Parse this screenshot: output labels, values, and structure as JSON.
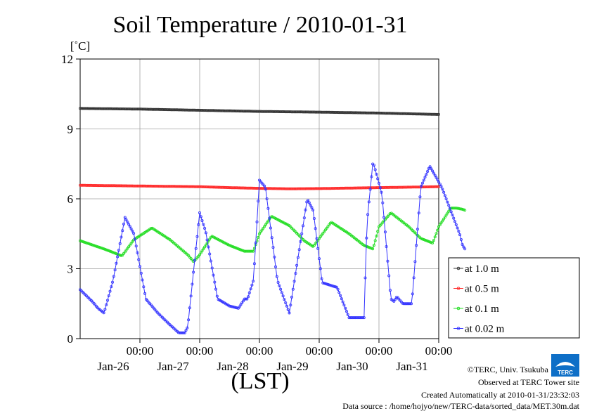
{
  "title": "Soil Temperature / 2010-01-31",
  "unit_label": "[˚C]",
  "xlabel": "(LST)",
  "credits": {
    "copyright": "©TERC, Univ. Tsukuba",
    "observed": "Observed at TERC Tower site",
    "created": "Created Automatically at 2010-01-31/23:32:03",
    "source": "Data source : /home/hojyo/new/TERC-data/sorted_data/MET.30m.dat"
  },
  "logo_text": "TERC",
  "chart_data": {
    "type": "line",
    "ylim": [
      0,
      12
    ],
    "yticks": [
      0,
      3,
      6,
      9,
      12
    ],
    "xlim": [
      -1.0,
      5.0
    ],
    "x_unit": "days after 2010-01-26 00:00 LST",
    "xticks": [
      {
        "x": 0,
        "time": "00:00",
        "date": "Jan-26"
      },
      {
        "x": 1,
        "time": "00:00",
        "date": "Jan-27"
      },
      {
        "x": 2,
        "time": "00:00",
        "date": "Jan-28"
      },
      {
        "x": 3,
        "time": "00:00",
        "date": "Jan-29"
      },
      {
        "x": 4,
        "time": "00:00",
        "date": "Jan-30"
      },
      {
        "x": 5,
        "time": "00:00",
        "date": "Jan-31"
      }
    ],
    "grid": true,
    "legend_position": "right",
    "series": [
      {
        "name": "at 1.0 m",
        "color": "#333333",
        "x": [
          -1.0,
          0.0,
          1.0,
          2.0,
          3.0,
          4.0,
          5.0
        ],
        "values": [
          9.88,
          9.85,
          9.8,
          9.75,
          9.72,
          9.68,
          9.62
        ]
      },
      {
        "name": "at 0.5 m",
        "color": "#ff2a2a",
        "x": [
          -1.0,
          0.0,
          1.0,
          1.5,
          2.0,
          2.5,
          3.0,
          4.0,
          5.0
        ],
        "values": [
          6.58,
          6.55,
          6.52,
          6.48,
          6.45,
          6.43,
          6.44,
          6.48,
          6.52
        ]
      },
      {
        "name": "at 0.1 m",
        "color": "#22dd22",
        "x": [
          -1.0,
          -0.6,
          -0.3,
          -0.1,
          0.2,
          0.5,
          0.8,
          0.9,
          1.0,
          1.2,
          1.5,
          1.75,
          1.9,
          2.0,
          2.2,
          2.5,
          2.75,
          2.9,
          3.0,
          3.2,
          3.5,
          3.75,
          3.9,
          4.0,
          4.2,
          4.5,
          4.7,
          4.9,
          5.0,
          5.2,
          5.3,
          5.4,
          5.45
        ],
        "values": [
          4.2,
          3.85,
          3.55,
          4.25,
          4.75,
          4.25,
          3.6,
          3.3,
          3.6,
          4.4,
          4.0,
          3.75,
          3.75,
          4.5,
          5.25,
          4.85,
          4.2,
          3.95,
          4.3,
          5.0,
          4.5,
          4.0,
          3.85,
          4.8,
          5.4,
          4.8,
          4.3,
          4.1,
          4.8,
          5.6,
          5.6,
          5.55,
          5.5
        ]
      },
      {
        "name": "at 0.02 m",
        "color": "#3333ff",
        "x": [
          -1.0,
          -0.8,
          -0.7,
          -0.6,
          -0.45,
          -0.25,
          -0.1,
          0.1,
          0.3,
          0.5,
          0.65,
          0.75,
          0.8,
          1.0,
          1.1,
          1.3,
          1.5,
          1.65,
          1.75,
          1.8,
          1.9,
          2.0,
          2.1,
          2.3,
          2.5,
          2.8,
          2.9,
          3.05,
          3.3,
          3.5,
          3.75,
          3.8,
          3.9,
          4.05,
          4.2,
          4.25,
          4.3,
          4.4,
          4.55,
          4.7,
          4.85,
          5.05,
          5.2,
          5.35,
          5.4,
          5.45
        ],
        "values": [
          2.1,
          1.6,
          1.3,
          1.1,
          2.5,
          5.2,
          4.5,
          1.7,
          1.1,
          0.6,
          0.25,
          0.25,
          0.5,
          5.4,
          4.6,
          1.7,
          1.4,
          1.3,
          1.7,
          1.7,
          2.5,
          6.8,
          6.5,
          2.5,
          1.1,
          6.0,
          5.5,
          2.4,
          2.2,
          0.9,
          0.9,
          5.0,
          7.6,
          6.2,
          1.7,
          1.6,
          1.8,
          1.5,
          1.5,
          6.5,
          7.4,
          6.5,
          5.5,
          4.5,
          4.0,
          3.8
        ]
      }
    ]
  }
}
